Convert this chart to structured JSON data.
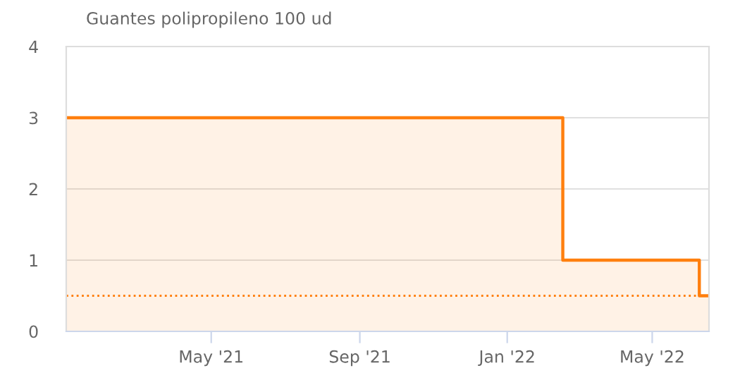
{
  "chart_data": {
    "type": "area",
    "title": "Guantes polipropileno 100 ud",
    "x": [
      "2021-01-01",
      "2022-02-16",
      "2022-02-16",
      "2022-06-09",
      "2022-06-09",
      "2022-06-17"
    ],
    "series": [
      {
        "color": "#ff7f0e",
        "values": [
          3,
          3,
          1,
          1,
          0.5,
          0.5
        ]
      }
    ],
    "xlim": [
      "2021-01-01",
      "2022-06-17"
    ],
    "xticks": [
      {
        "value": "2021-05-01",
        "label": "May '21"
      },
      {
        "value": "2021-09-01",
        "label": "Sep '21"
      },
      {
        "value": "2022-01-01",
        "label": "Jan '22"
      },
      {
        "value": "2022-05-01",
        "label": "May '22"
      }
    ],
    "ylim": [
      0,
      4
    ],
    "yticks": [
      0,
      1,
      2,
      3,
      4
    ],
    "grid": "y",
    "ref_lines": [
      {
        "axis": "y",
        "value": 0.5,
        "color": "#ff7f0e",
        "line_style": "dotted"
      }
    ]
  }
}
